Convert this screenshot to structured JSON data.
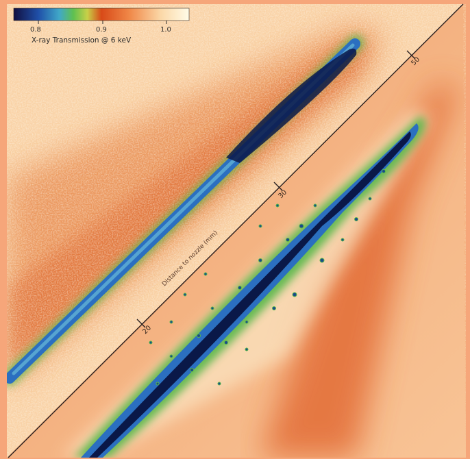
{
  "figure": {
    "colorbar": {
      "title": "X-ray Transmission @ 6 keV",
      "ticks": [
        "0.8",
        "0.9",
        "1.0"
      ],
      "stops": [
        "#121040",
        "#1f4fa8",
        "#40a8c8",
        "#5fc050",
        "#c8d048",
        "#d84a18",
        "#f08848",
        "#fbd8a8",
        "#fffce8"
      ]
    },
    "diagonal_axis": {
      "label": "Distance to nozzle (mm)",
      "ticks": [
        "20",
        "30",
        "50"
      ]
    },
    "colors": {
      "background": "#f4b07c",
      "plume_orange": "#d9561c",
      "jet_dark": "#0a1848",
      "jet_blue": "#2b6fc0",
      "jet_green": "#58b848",
      "border": "#f6a67a"
    }
  }
}
